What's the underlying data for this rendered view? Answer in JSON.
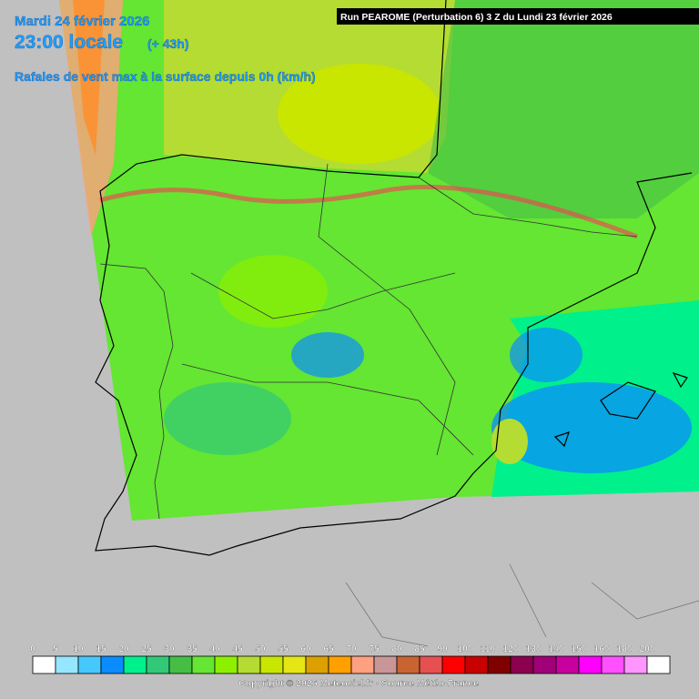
{
  "header": {
    "date": "Mardi 24 février 2026",
    "time": "23:00 locale",
    "lead": "(+ 43h)",
    "parameter": "Rafales de vent max à la surface depuis 0h (km/h)"
  },
  "run": "Run PEAROME (Perturbation 6) 3 Z du Lundi 23 février 2026",
  "legend": {
    "labels": [
      0,
      5,
      10,
      15,
      20,
      25,
      30,
      35,
      40,
      45,
      50,
      55,
      60,
      65,
      70,
      75,
      80,
      85,
      90,
      100,
      110,
      120,
      130,
      140,
      150,
      160,
      180,
      200
    ],
    "colors": [
      "#ffffff",
      "#96e6ff",
      "#46c8ff",
      "#0a8cff",
      "#00f08c",
      "#32c878",
      "#46be46",
      "#64e632",
      "#8cf000",
      "#b4dc32",
      "#c8e600",
      "#e6e614",
      "#dca000",
      "#ffa000",
      "#ffa080",
      "#c89696",
      "#c86432",
      "#e65050",
      "#ff0000",
      "#c80000",
      "#800000",
      "#8c0050",
      "#a00078",
      "#c800a0",
      "#ff00ff",
      "#ff50ff",
      "#ff96ff",
      "#ffffff"
    ]
  },
  "copyright": "Copyright © 2026 Meteociel.fr - Source Météo-France"
}
